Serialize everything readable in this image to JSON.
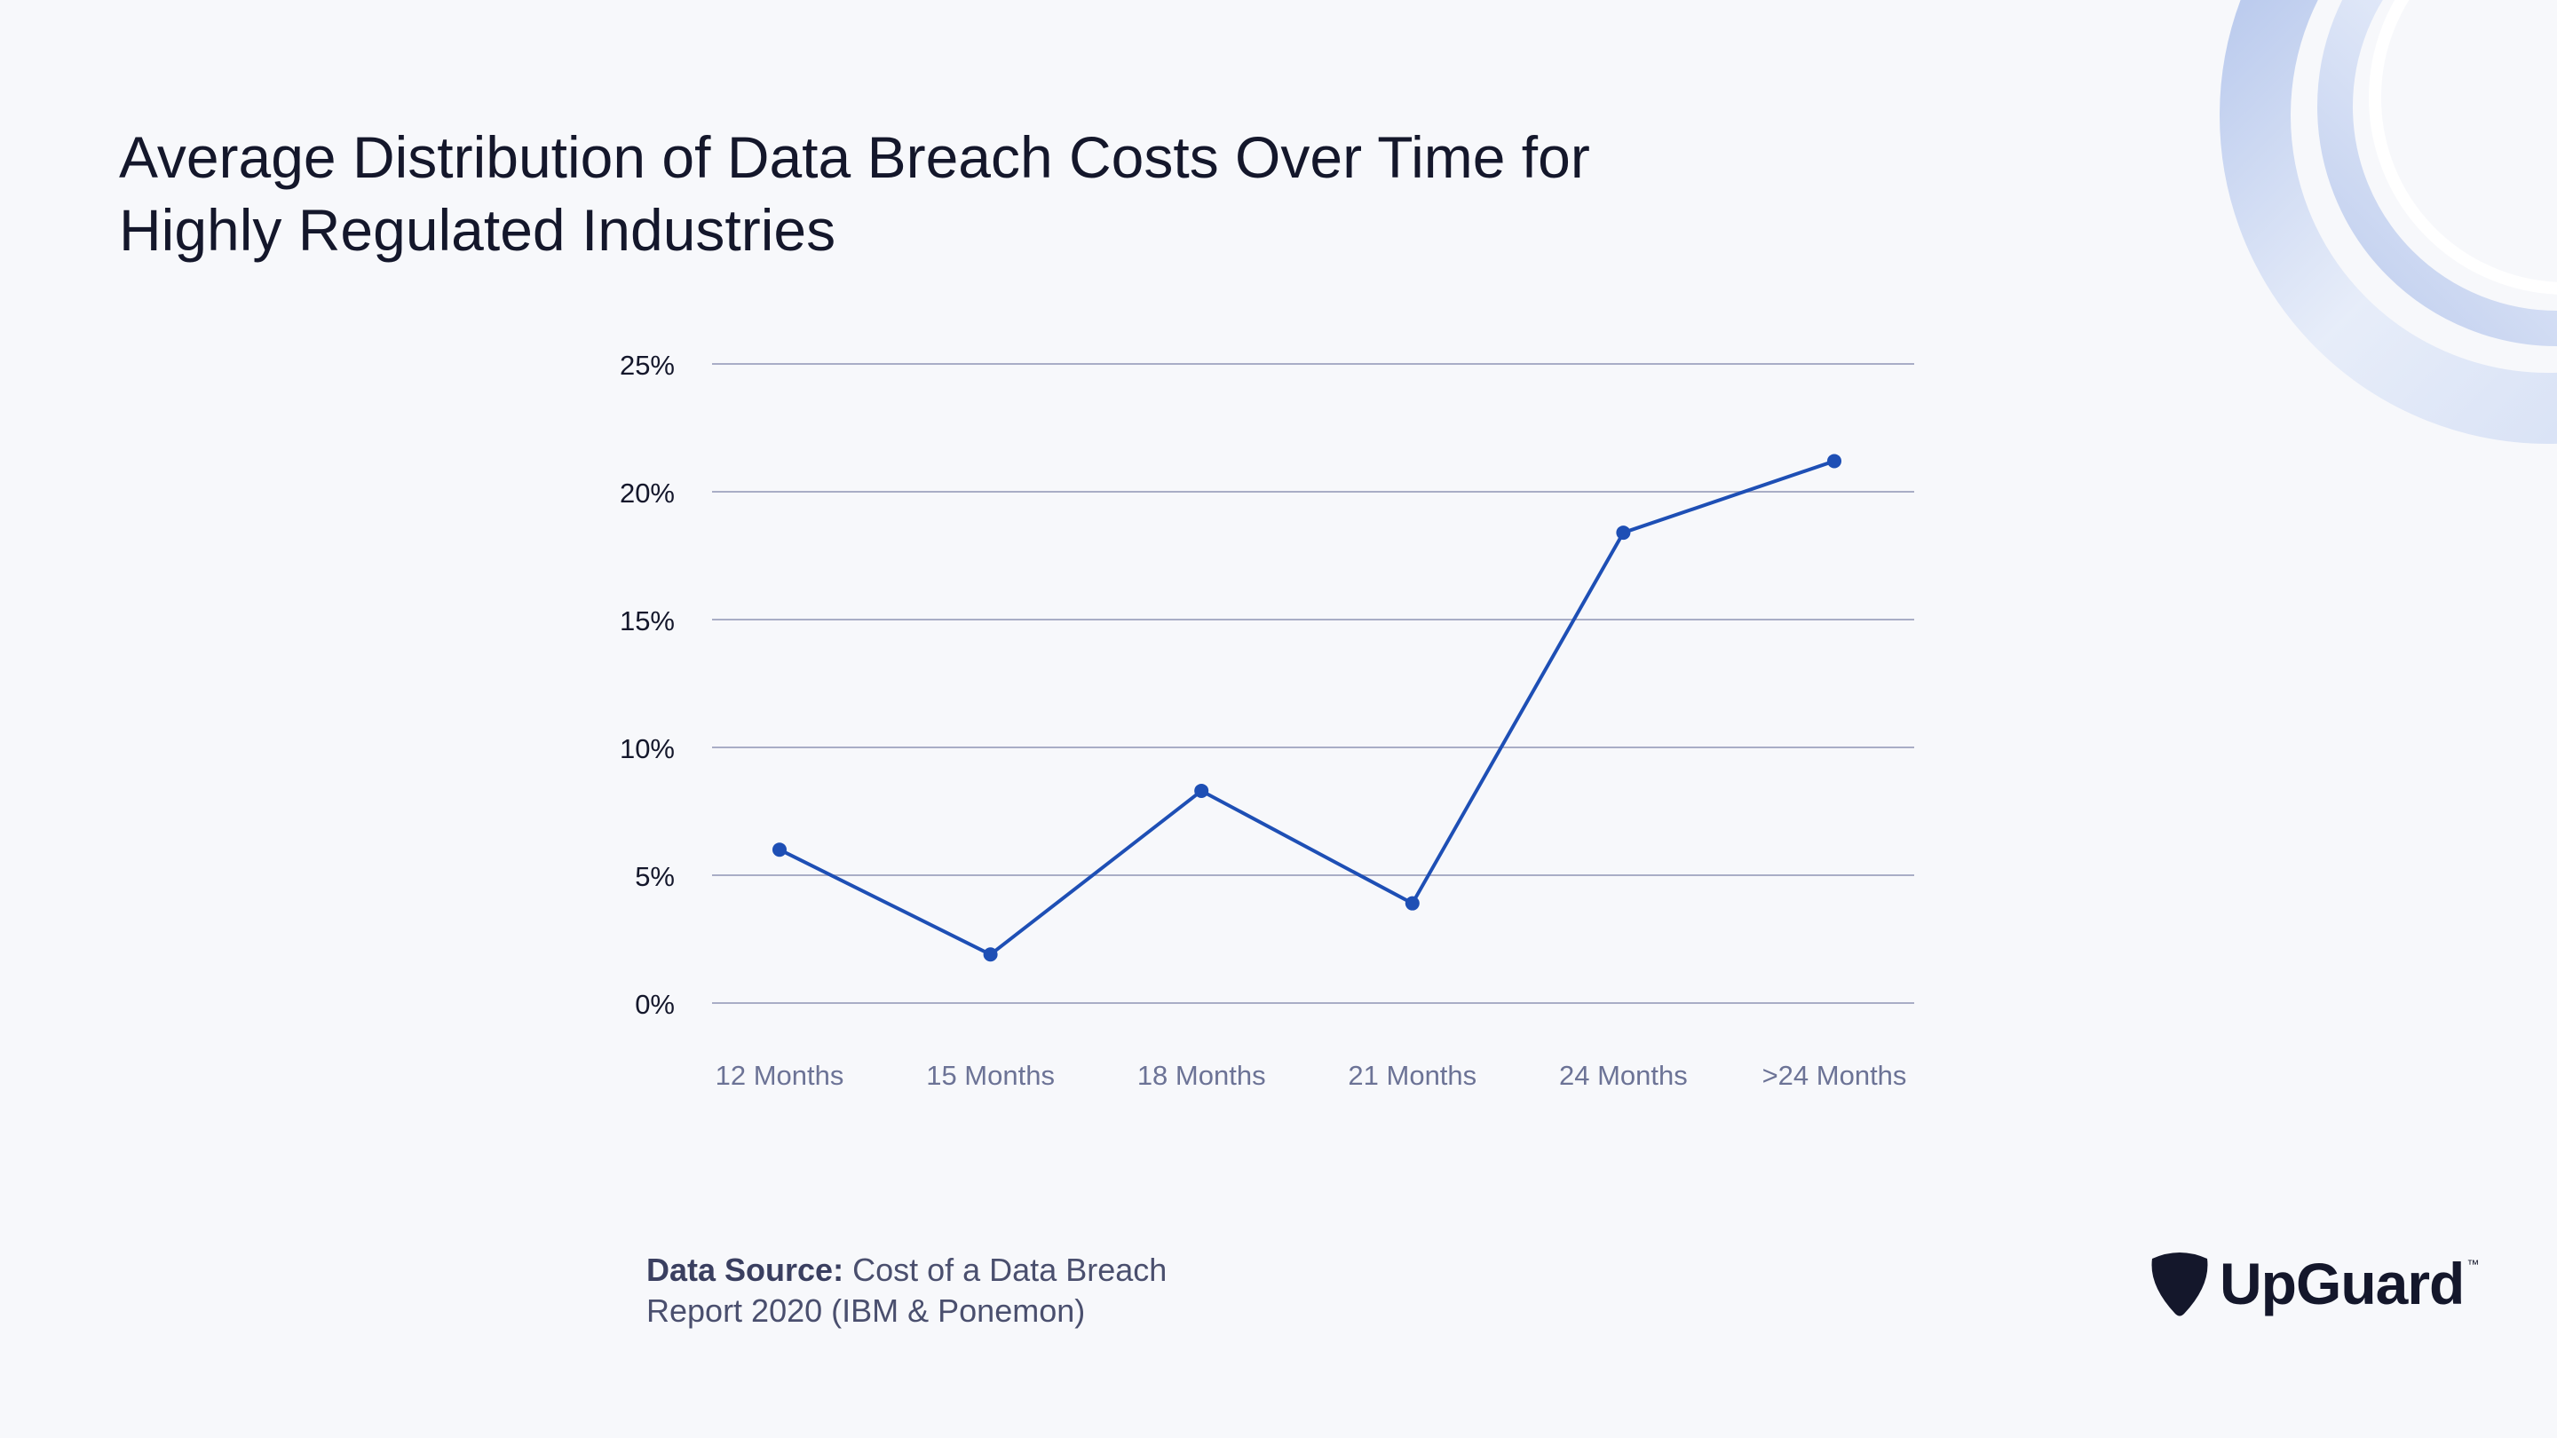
{
  "title_lines": [
    "Average Distribution of Data Breach Costs Over Time for",
    "Highly Regulated Industries"
  ],
  "source": {
    "label": "Data Source:",
    "text_line1": "Cost of a Data Breach",
    "text_line2": "Report 2020 (IBM & Ponemon)"
  },
  "logo": {
    "name": "UpGuard",
    "tm": "™",
    "icon": "pick-shield-icon"
  },
  "colors": {
    "line": "#1e4fb5",
    "grid": "#a9adc6",
    "xtick": "#6c7396",
    "ytick": "#14172b"
  },
  "chart_data": {
    "type": "line",
    "title": "Average Distribution of Data Breach Costs Over Time for Highly Regulated Industries",
    "categories": [
      "12 Months",
      "15 Months",
      "18 Months",
      "21 Months",
      "24 Months",
      ">24 Months"
    ],
    "series": [
      {
        "values": [
          6.0,
          1.9,
          8.3,
          3.9,
          18.4,
          21.2
        ]
      }
    ],
    "y_ticks": [
      "0%",
      "5%",
      "10%",
      "15%",
      "20%",
      "25%"
    ],
    "ylim": [
      0,
      25
    ],
    "grid": true,
    "legend": "none"
  }
}
